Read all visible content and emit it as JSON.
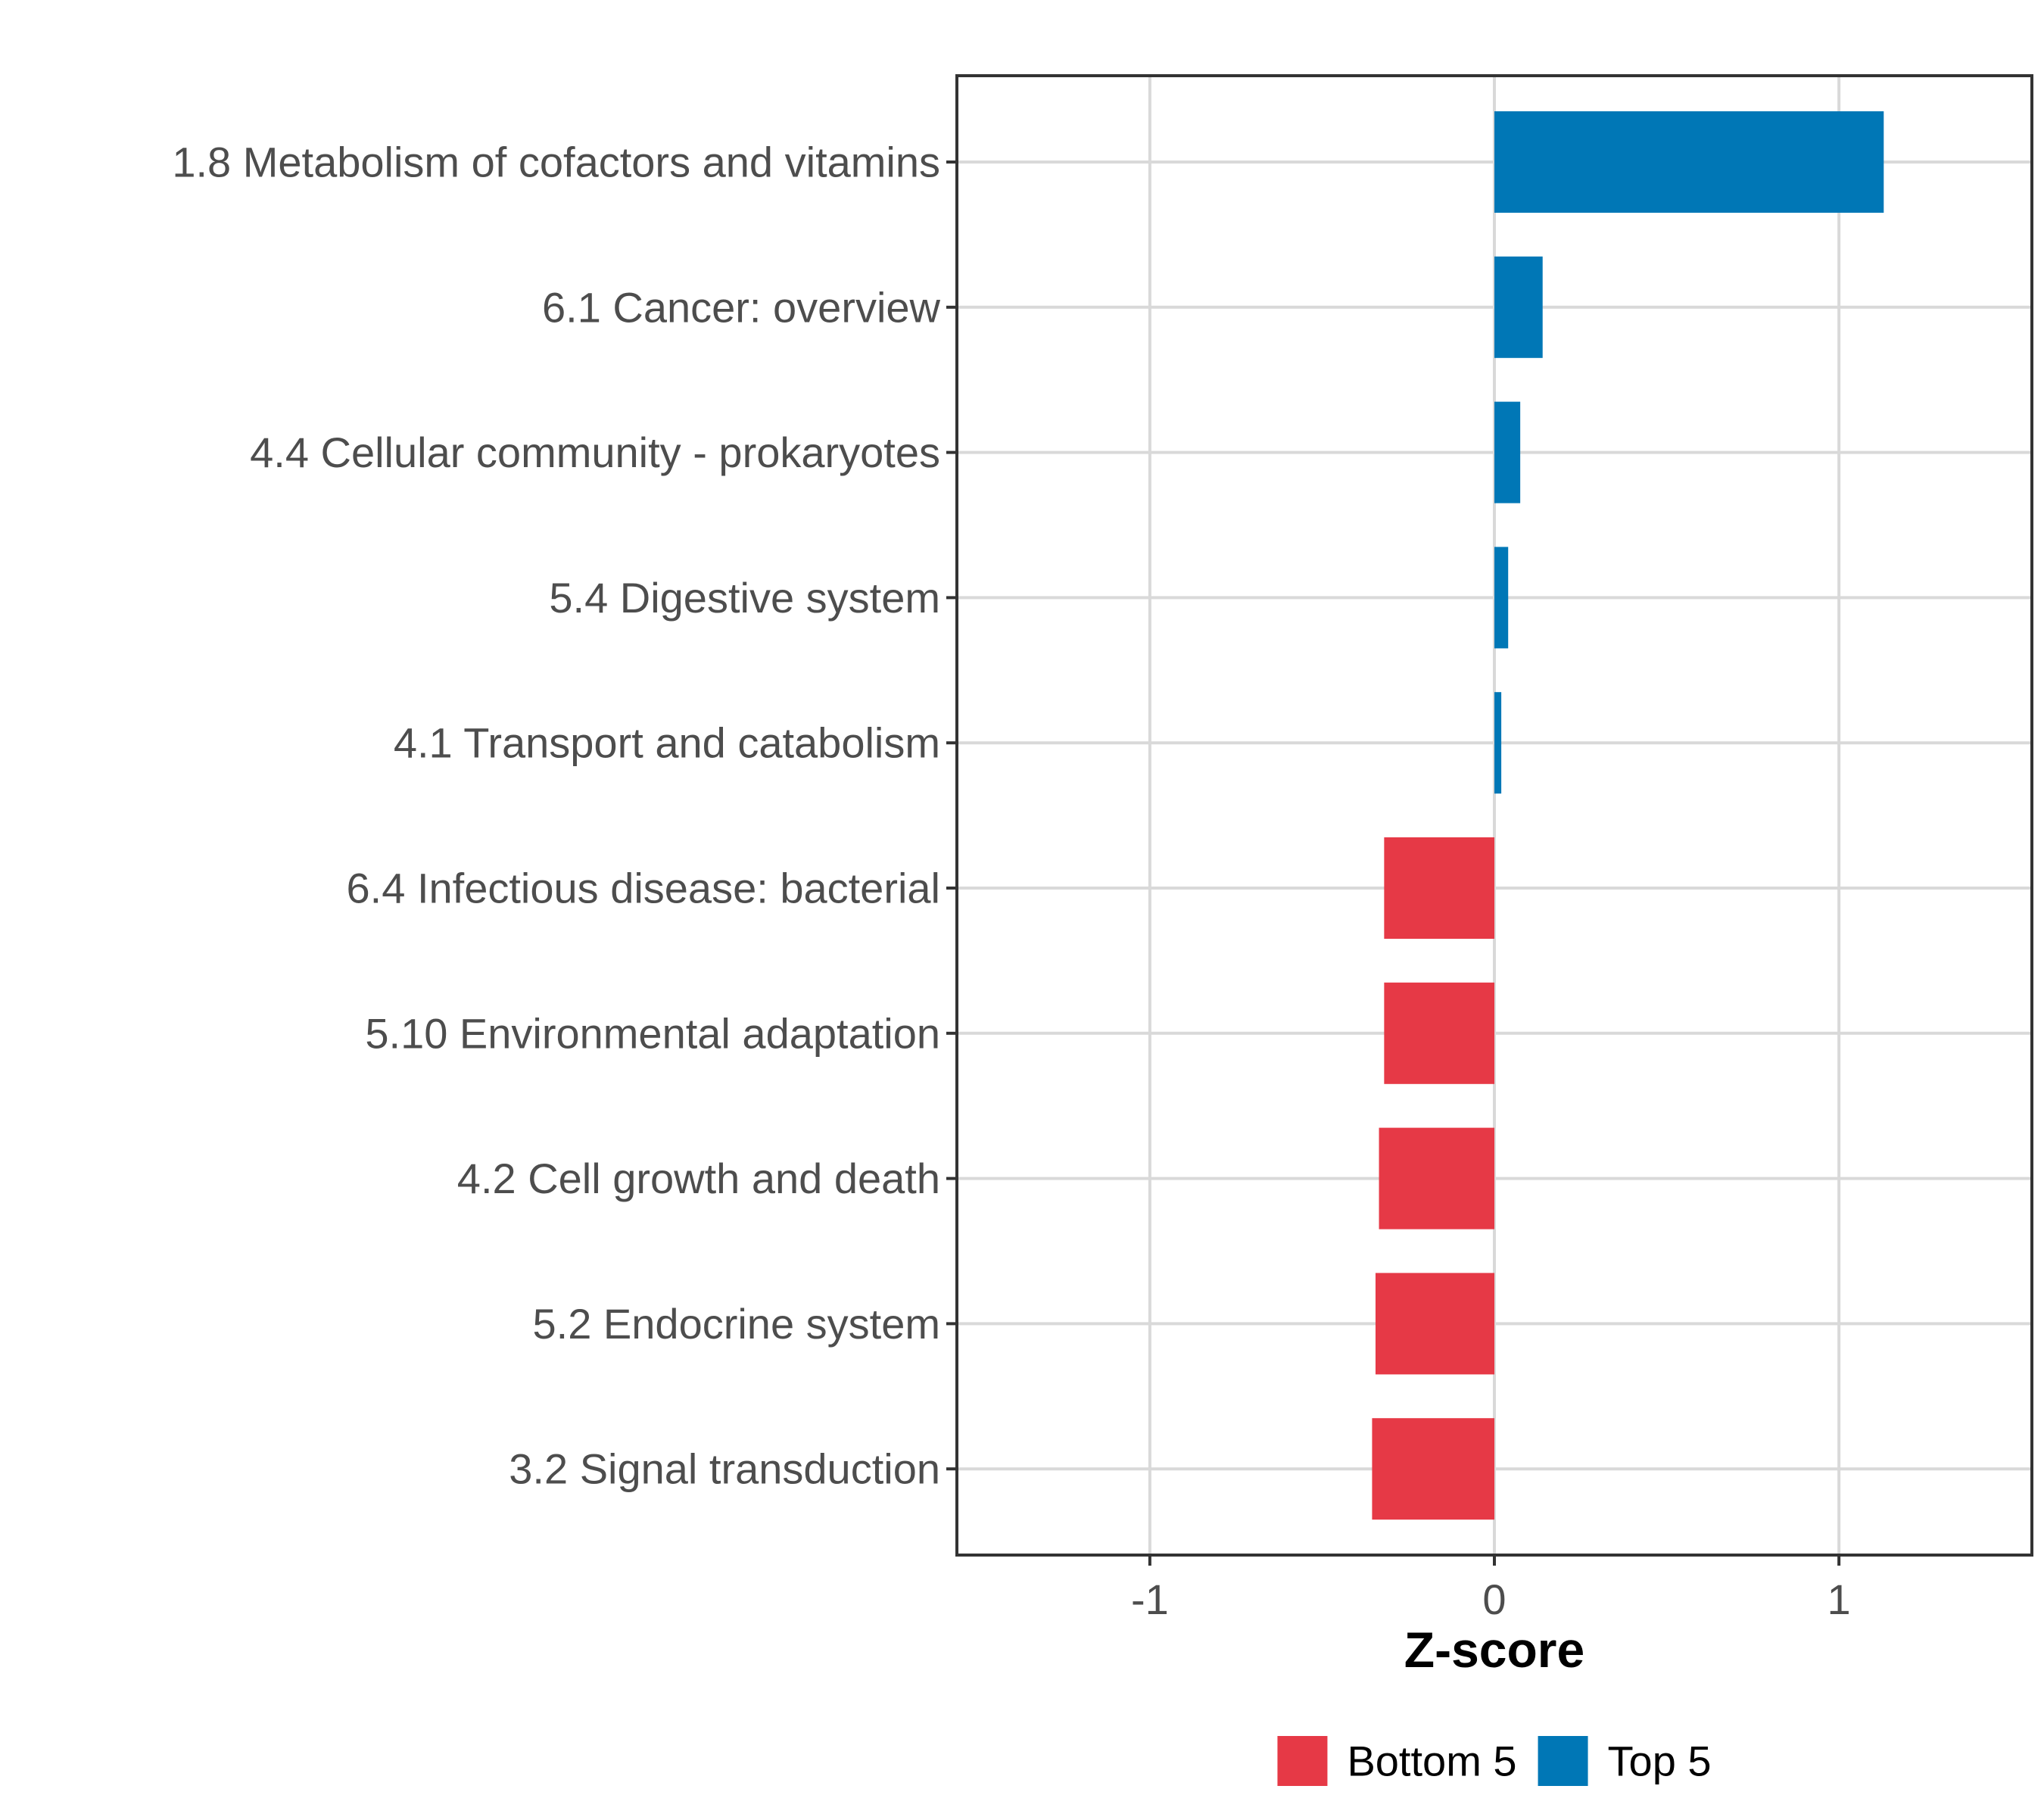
{
  "chart_data": {
    "type": "bar",
    "orientation": "horizontal",
    "categories": [
      "1.8 Metabolism of cofactors and vitamins",
      "6.1 Cancer: overview",
      "4.4 Cellular community - prokaryotes",
      "5.4 Digestive system",
      "4.1 Transport and catabolism",
      "6.4 Infectious disease: bacterial",
      "5.10 Environmental adaptation",
      "4.2 Cell growth and death",
      "5.2 Endocrine system",
      "3.2 Signal transduction"
    ],
    "values": [
      1.13,
      0.14,
      0.075,
      0.04,
      0.02,
      -0.32,
      -0.32,
      -0.335,
      -0.345,
      -0.355
    ],
    "groups": [
      "Top 5",
      "Top 5",
      "Top 5",
      "Top 5",
      "Top 5",
      "Bottom 5",
      "Bottom 5",
      "Bottom 5",
      "Bottom 5",
      "Bottom 5"
    ],
    "xlabel": "Z-score",
    "ylabel": "",
    "xlim": [
      -1.56,
      1.56
    ],
    "xticks": [
      -1,
      0,
      1
    ],
    "xtick_labels": [
      "-1",
      "0",
      "1"
    ],
    "grid": true,
    "legend": {
      "position": "bottom",
      "entries": [
        {
          "label": "Bottom 5",
          "color": "#E63946"
        },
        {
          "label": "Top 5",
          "color": "#0077B6"
        }
      ]
    },
    "colors": {
      "Top 5": "#0077B6",
      "Bottom 5": "#E63946"
    }
  }
}
